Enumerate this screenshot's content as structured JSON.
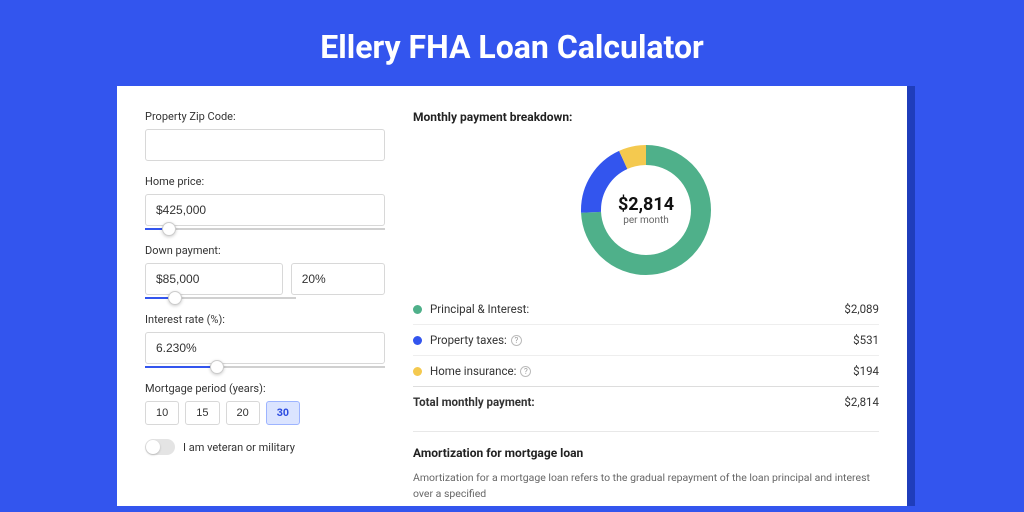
{
  "page": {
    "title": "Ellery FHA Loan Calculator",
    "background_color": "#3355ee",
    "card_shadow_color": "#1f3dbb"
  },
  "form": {
    "zip": {
      "label": "Property Zip Code:",
      "value": ""
    },
    "home_price": {
      "label": "Home price:",
      "value": "$425,000",
      "slider_pct": 10
    },
    "down_payment": {
      "label": "Down payment:",
      "value": "$85,000",
      "pct_value": "20%",
      "slider_pct": 20
    },
    "interest_rate": {
      "label": "Interest rate (%):",
      "value": "6.230%",
      "slider_pct": 30
    },
    "period": {
      "label": "Mortgage period (years):",
      "options": [
        "10",
        "15",
        "20",
        "30"
      ],
      "active": "30"
    },
    "veteran": {
      "label": "I am veteran or military",
      "on": false
    }
  },
  "breakdown": {
    "title": "Monthly payment breakdown:",
    "donut": {
      "type": "donut",
      "amount": "$2,814",
      "sub": "per month",
      "total_value": 2814,
      "slices": [
        {
          "name": "Principal & Interest:",
          "value": 2089,
          "amount": "$2,089",
          "color": "#4fb08a",
          "help": false
        },
        {
          "name": "Property taxes:",
          "value": 531,
          "amount": "$531",
          "color": "#3355ee",
          "help": true
        },
        {
          "name": "Home insurance:",
          "value": 194,
          "amount": "$194",
          "color": "#f4c94f",
          "help": true
        }
      ],
      "thickness": 20,
      "background_color": "#ffffff"
    },
    "total": {
      "label": "Total monthly payment:",
      "amount": "$2,814"
    }
  },
  "amortization": {
    "title": "Amortization for mortgage loan",
    "desc": "Amortization for a mortgage loan refers to the gradual repayment of the loan principal and interest over a specified"
  }
}
